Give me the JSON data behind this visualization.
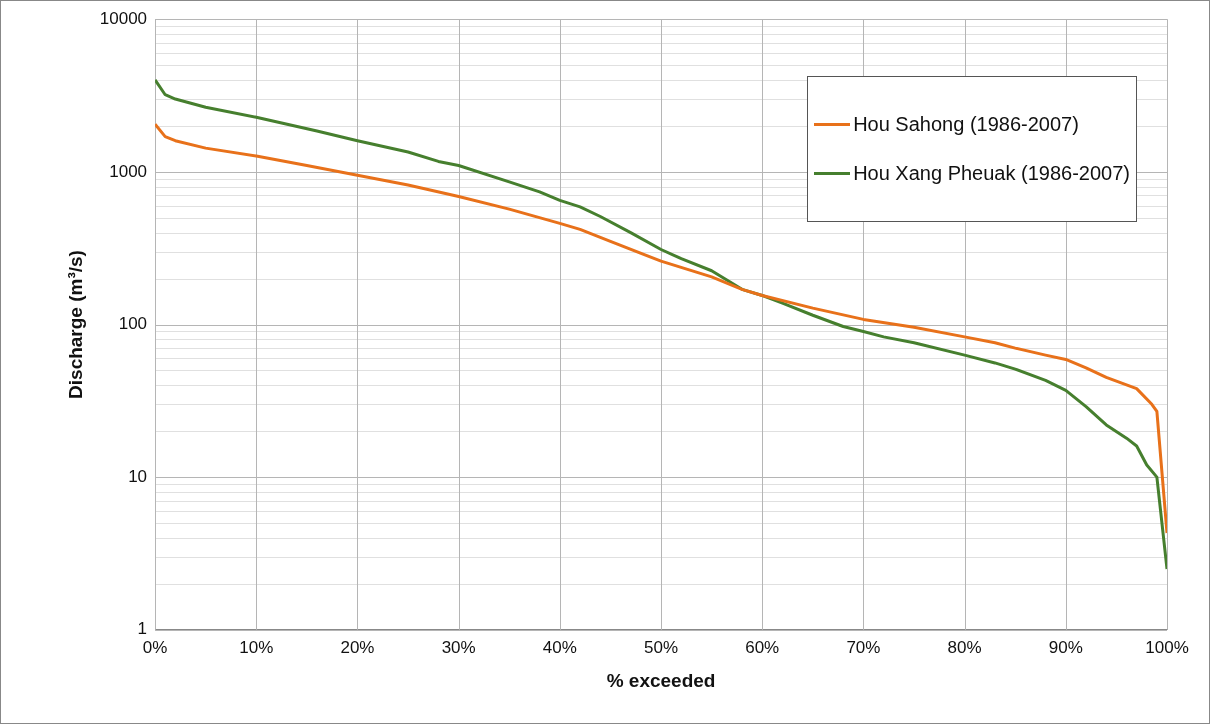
{
  "chart_data": {
    "type": "line",
    "xlabel": "% exceeded",
    "ylabel": "Discharge (m³/s)",
    "xlim": [
      0,
      100
    ],
    "xticks": [
      {
        "value": 0,
        "label": "0%"
      },
      {
        "value": 10,
        "label": "10%"
      },
      {
        "value": 20,
        "label": "20%"
      },
      {
        "value": 30,
        "label": "30%"
      },
      {
        "value": 40,
        "label": "40%"
      },
      {
        "value": 50,
        "label": "50%"
      },
      {
        "value": 60,
        "label": "60%"
      },
      {
        "value": 70,
        "label": "70%"
      },
      {
        "value": 80,
        "label": "80%"
      },
      {
        "value": 90,
        "label": "90%"
      },
      {
        "value": 100,
        "label": "100%"
      }
    ],
    "ylim": [
      1,
      10000
    ],
    "yticks": [
      1,
      10,
      100,
      1000,
      10000
    ],
    "log": "y",
    "grid": true,
    "legend": "top right",
    "marker": "none",
    "line_style": "solid",
    "series": [
      {
        "name": "Hou Sahong (1986-2007)",
        "color": "#e8711a",
        "x": [
          0,
          1,
          2,
          5,
          10,
          15,
          20,
          25,
          30,
          35,
          40,
          42,
          45,
          50,
          55,
          58,
          60,
          65,
          70,
          75,
          80,
          83,
          85,
          88,
          90,
          92,
          94,
          97,
          98.5,
          99,
          100
        ],
        "values": [
          2050,
          1700,
          1600,
          1430,
          1270,
          1100,
          950,
          820,
          690,
          570,
          460,
          420,
          350,
          260,
          205,
          170,
          155,
          128,
          108,
          96,
          83,
          76,
          70,
          63,
          59,
          52,
          45,
          38,
          30,
          27,
          4.3
        ]
      },
      {
        "name": "Hou Xang Pheuak (1986-2007)",
        "color": "#467f2e",
        "x": [
          0,
          1,
          2,
          5,
          10,
          16,
          20,
          25,
          28,
          30,
          35,
          38,
          40,
          42,
          44,
          47,
          50,
          52,
          55,
          58,
          60,
          62,
          65,
          68,
          70,
          72,
          75,
          80,
          83,
          85,
          88,
          90,
          92,
          94,
          96,
          97,
          98,
          99,
          100
        ],
        "values": [
          4000,
          3200,
          3000,
          2650,
          2280,
          1850,
          1600,
          1350,
          1170,
          1100,
          860,
          740,
          650,
          590,
          510,
          400,
          310,
          270,
          225,
          170,
          155,
          138,
          115,
          97,
          90,
          83,
          76,
          63,
          56,
          51,
          43,
          37,
          29,
          22,
          18,
          16,
          12,
          10,
          2.5
        ]
      }
    ]
  }
}
